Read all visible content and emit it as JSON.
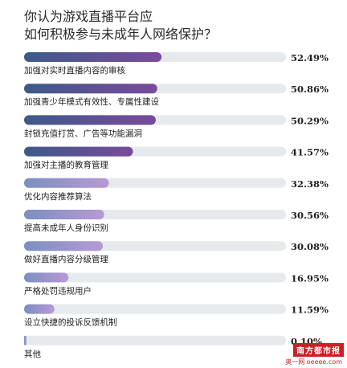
{
  "chart_data": {
    "type": "bar",
    "title_lines": [
      "你认为游戏直播平台应",
      "如何积极参与未成年人网络保护？"
    ],
    "categories": [
      "加强对实时直播内容的审核",
      "加强青少年模式有效性、专属性建设",
      "封锁充值打赏、广告等功能漏洞",
      "加强对主播的教育管理",
      "优化内容推荐算法",
      "提高未成年人身份识别",
      "做好直播内容分级管理",
      "严格处罚违规用户",
      "设立快捷的投诉反馈机制",
      "其他"
    ],
    "values": [
      52.49,
      50.86,
      50.29,
      41.57,
      32.38,
      30.56,
      30.08,
      16.95,
      11.59,
      0.1
    ],
    "value_labels": [
      "52.49%",
      "50.86%",
      "50.29%",
      "41.57%",
      "32.38%",
      "30.56%",
      "30.08%",
      "16.95%",
      "11.59%",
      "0.10%"
    ],
    "xlim": [
      0,
      100
    ],
    "colors": {
      "track": "#e6eaed",
      "bar_start": "#3d5a8a",
      "bar_end": "#7a4a9c",
      "bar_light": "#b59cd0"
    }
  },
  "watermark": {
    "logo": "南方都市报",
    "sub": "奥一网 oeeee.com"
  }
}
